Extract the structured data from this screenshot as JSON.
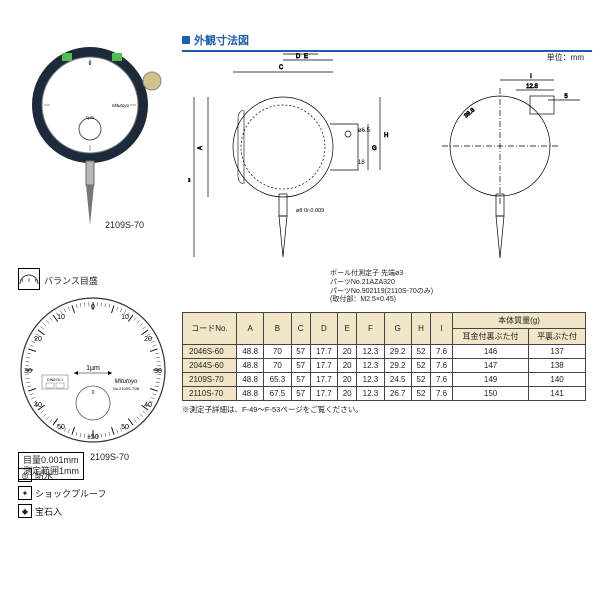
{
  "product": {
    "photo_label": "2109S-70"
  },
  "balance_scale": {
    "label": "バランス目盛"
  },
  "dial": {
    "model_label": "2109S-70",
    "spec_line1": "目量0.001mm",
    "spec_line2": "測定範囲1mm",
    "center_unit": "1µm",
    "brand": "Mitutoyo",
    "model_small": "No.2109S-70B",
    "din_mark": "DIN878-1",
    "inner_zero": "0"
  },
  "features": {
    "f1": "防水",
    "f2": "ショックプルーフ",
    "f3": "宝石入"
  },
  "section": {
    "title": "外観寸法図",
    "unit": "単位：mm"
  },
  "diagram": {
    "dim_A": "A",
    "dim_B": "B",
    "dim_C": "C",
    "dim_D": "D",
    "dim_E": "E",
    "dim_G": "G",
    "dim_H": "H",
    "dim_I": "I",
    "phi65": "ø6.5",
    "h18": "18",
    "phi8": "ø8 0/-0.009",
    "d128": "12.8",
    "d5": "5",
    "d388": "38.8",
    "note1": "ボール付測定子 先端ø3",
    "note2": "パーツNo.21AZA320",
    "note3": "パーツNo.902119(2110S-70のみ)",
    "note4": "(取付部：M2.5×0.45)",
    "footnote": "※測定子詳細は、F-49〜F-53ページをご覧ください。"
  },
  "table": {
    "hdr": {
      "code": "コードNo.",
      "A": "A",
      "B": "B",
      "C": "C",
      "D": "D",
      "E": "E",
      "F": "F",
      "G": "G",
      "H": "H",
      "I": "I",
      "mass": "本体質量(g)",
      "ear": "耳金付裏ぶた付",
      "flat": "平裏ぶた付"
    },
    "rows": [
      {
        "code": "2046S-60",
        "A": "48.8",
        "B": "70",
        "C": "57",
        "D": "17.7",
        "E": "20",
        "F": "12.3",
        "G": "29.2",
        "H": "52",
        "I": "7.6",
        "ear": "146",
        "flat": "137"
      },
      {
        "code": "2044S-60",
        "A": "48.8",
        "B": "70",
        "C": "57",
        "D": "17.7",
        "E": "20",
        "F": "12.3",
        "G": "29.2",
        "H": "52",
        "I": "7.6",
        "ear": "147",
        "flat": "138"
      },
      {
        "code": "2109S-70",
        "A": "48.8",
        "B": "65.3",
        "C": "57",
        "D": "17.7",
        "E": "20",
        "F": "12.3",
        "G": "24.5",
        "H": "52",
        "I": "7.6",
        "ear": "149",
        "flat": "140"
      },
      {
        "code": "2110S-70",
        "A": "48.8",
        "B": "67.5",
        "C": "57",
        "D": "17.7",
        "E": "20",
        "F": "12.3",
        "G": "26.7",
        "H": "52",
        "I": "7.6",
        "ear": "150",
        "flat": "141"
      }
    ]
  },
  "colors": {
    "accent": "#1a5fb4",
    "th_bg": "#f2e6c9",
    "pointer_green": "#4fbf4f"
  }
}
